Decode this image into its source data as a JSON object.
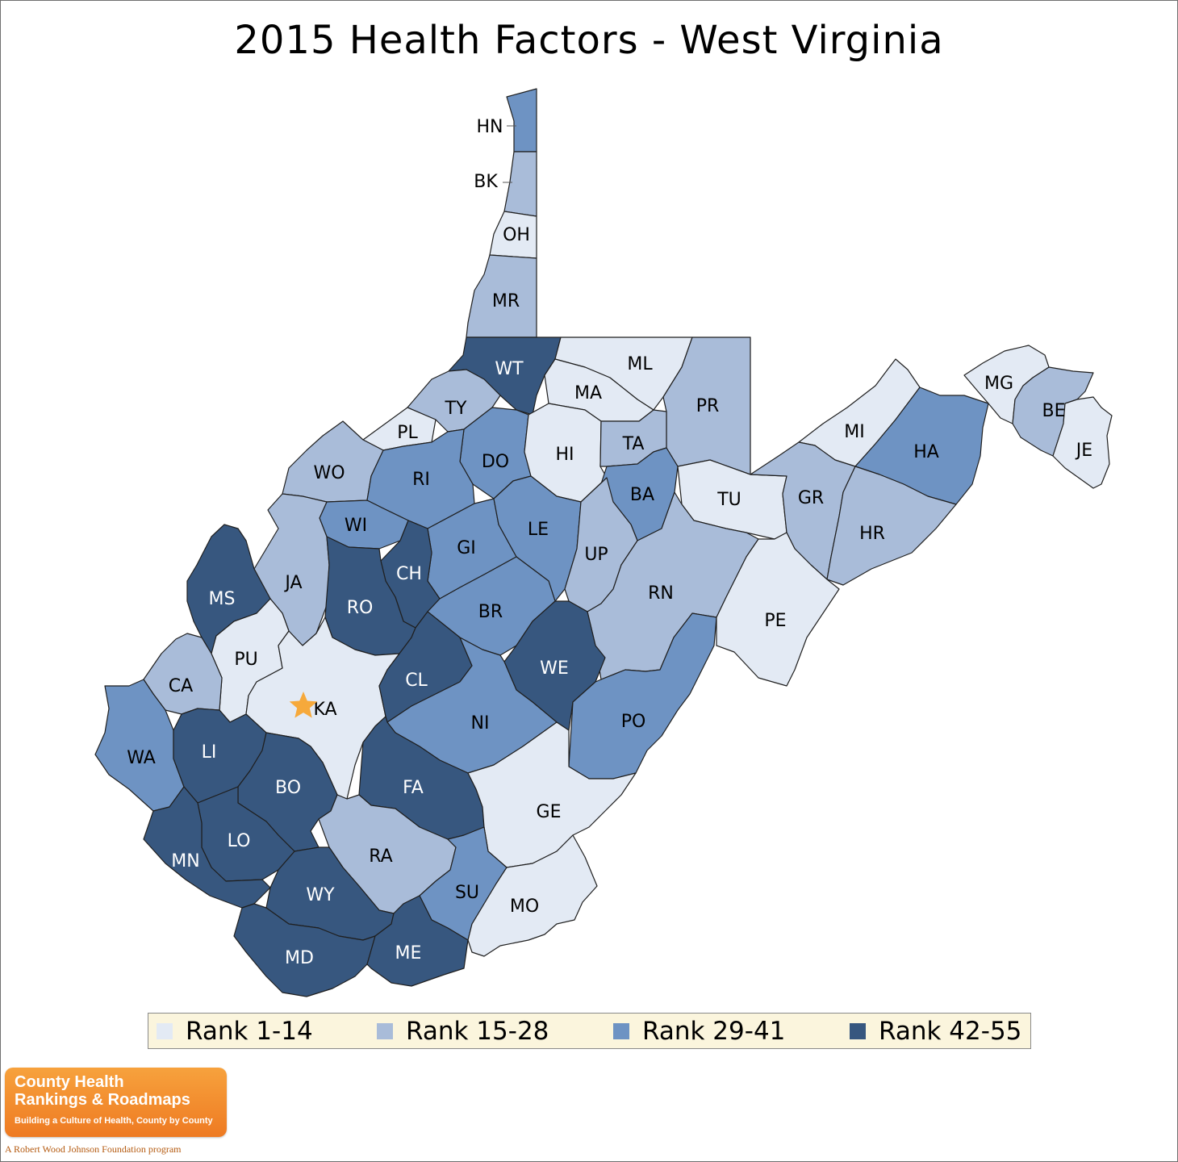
{
  "title": "2015 Health Factors - West Virginia",
  "legend": [
    {
      "rank": 1,
      "label": "Rank 1-14",
      "color": "#e3eaf4"
    },
    {
      "rank": 2,
      "label": "Rank 15-28",
      "color": "#a9bcd9"
    },
    {
      "rank": 3,
      "label": "Rank 29-41",
      "color": "#6e93c3"
    },
    {
      "rank": 4,
      "label": "Rank 42-55",
      "color": "#37577f"
    }
  ],
  "counties": [
    {
      "abbr": "HN",
      "rank": 3
    },
    {
      "abbr": "BK",
      "rank": 2
    },
    {
      "abbr": "OH",
      "rank": 1
    },
    {
      "abbr": "MR",
      "rank": 2
    },
    {
      "abbr": "WT",
      "rank": 4
    },
    {
      "abbr": "ML",
      "rank": 1
    },
    {
      "abbr": "MA",
      "rank": 1
    },
    {
      "abbr": "PR",
      "rank": 2
    },
    {
      "abbr": "TY",
      "rank": 2
    },
    {
      "abbr": "PL",
      "rank": 1
    },
    {
      "abbr": "DO",
      "rank": 3
    },
    {
      "abbr": "HI",
      "rank": 1
    },
    {
      "abbr": "TA",
      "rank": 2
    },
    {
      "abbr": "WO",
      "rank": 2
    },
    {
      "abbr": "RI",
      "rank": 3
    },
    {
      "abbr": "BA",
      "rank": 3
    },
    {
      "abbr": "TU",
      "rank": 1
    },
    {
      "abbr": "WI",
      "rank": 3
    },
    {
      "abbr": "GI",
      "rank": 3
    },
    {
      "abbr": "LE",
      "rank": 3
    },
    {
      "abbr": "UP",
      "rank": 2
    },
    {
      "abbr": "CH",
      "rank": 4
    },
    {
      "abbr": "JA",
      "rank": 2
    },
    {
      "abbr": "MS",
      "rank": 4
    },
    {
      "abbr": "RO",
      "rank": 4
    },
    {
      "abbr": "BR",
      "rank": 3
    },
    {
      "abbr": "RN",
      "rank": 2
    },
    {
      "abbr": "PU",
      "rank": 1
    },
    {
      "abbr": "KA",
      "rank": 1
    },
    {
      "abbr": "CL",
      "rank": 4
    },
    {
      "abbr": "WE",
      "rank": 4
    },
    {
      "abbr": "CA",
      "rank": 2
    },
    {
      "abbr": "NI",
      "rank": 3
    },
    {
      "abbr": "PO",
      "rank": 3
    },
    {
      "abbr": "WA",
      "rank": 3
    },
    {
      "abbr": "LI",
      "rank": 4
    },
    {
      "abbr": "BO",
      "rank": 4
    },
    {
      "abbr": "FA",
      "rank": 4
    },
    {
      "abbr": "GE",
      "rank": 1
    },
    {
      "abbr": "LO",
      "rank": 4
    },
    {
      "abbr": "MN",
      "rank": 4
    },
    {
      "abbr": "RA",
      "rank": 2
    },
    {
      "abbr": "SU",
      "rank": 3
    },
    {
      "abbr": "WY",
      "rank": 4
    },
    {
      "abbr": "MO",
      "rank": 1
    },
    {
      "abbr": "MD",
      "rank": 4
    },
    {
      "abbr": "ME",
      "rank": 4
    },
    {
      "abbr": "MI",
      "rank": 1
    },
    {
      "abbr": "MG",
      "rank": 1
    },
    {
      "abbr": "BE",
      "rank": 2
    },
    {
      "abbr": "JE",
      "rank": 1
    },
    {
      "abbr": "HA",
      "rank": 3
    },
    {
      "abbr": "GR",
      "rank": 2
    },
    {
      "abbr": "HR",
      "rank": 2
    },
    {
      "abbr": "PE",
      "rank": 1
    }
  ],
  "marker": {
    "county": "KA",
    "color": "#f6a93b",
    "icon": "star-icon"
  },
  "logo": {
    "line1": "County Health",
    "line2": "Rankings & Roadmaps",
    "tagline": "Building a Culture of Health, County by County",
    "footer": "A Robert Wood Johnson Foundation program"
  }
}
